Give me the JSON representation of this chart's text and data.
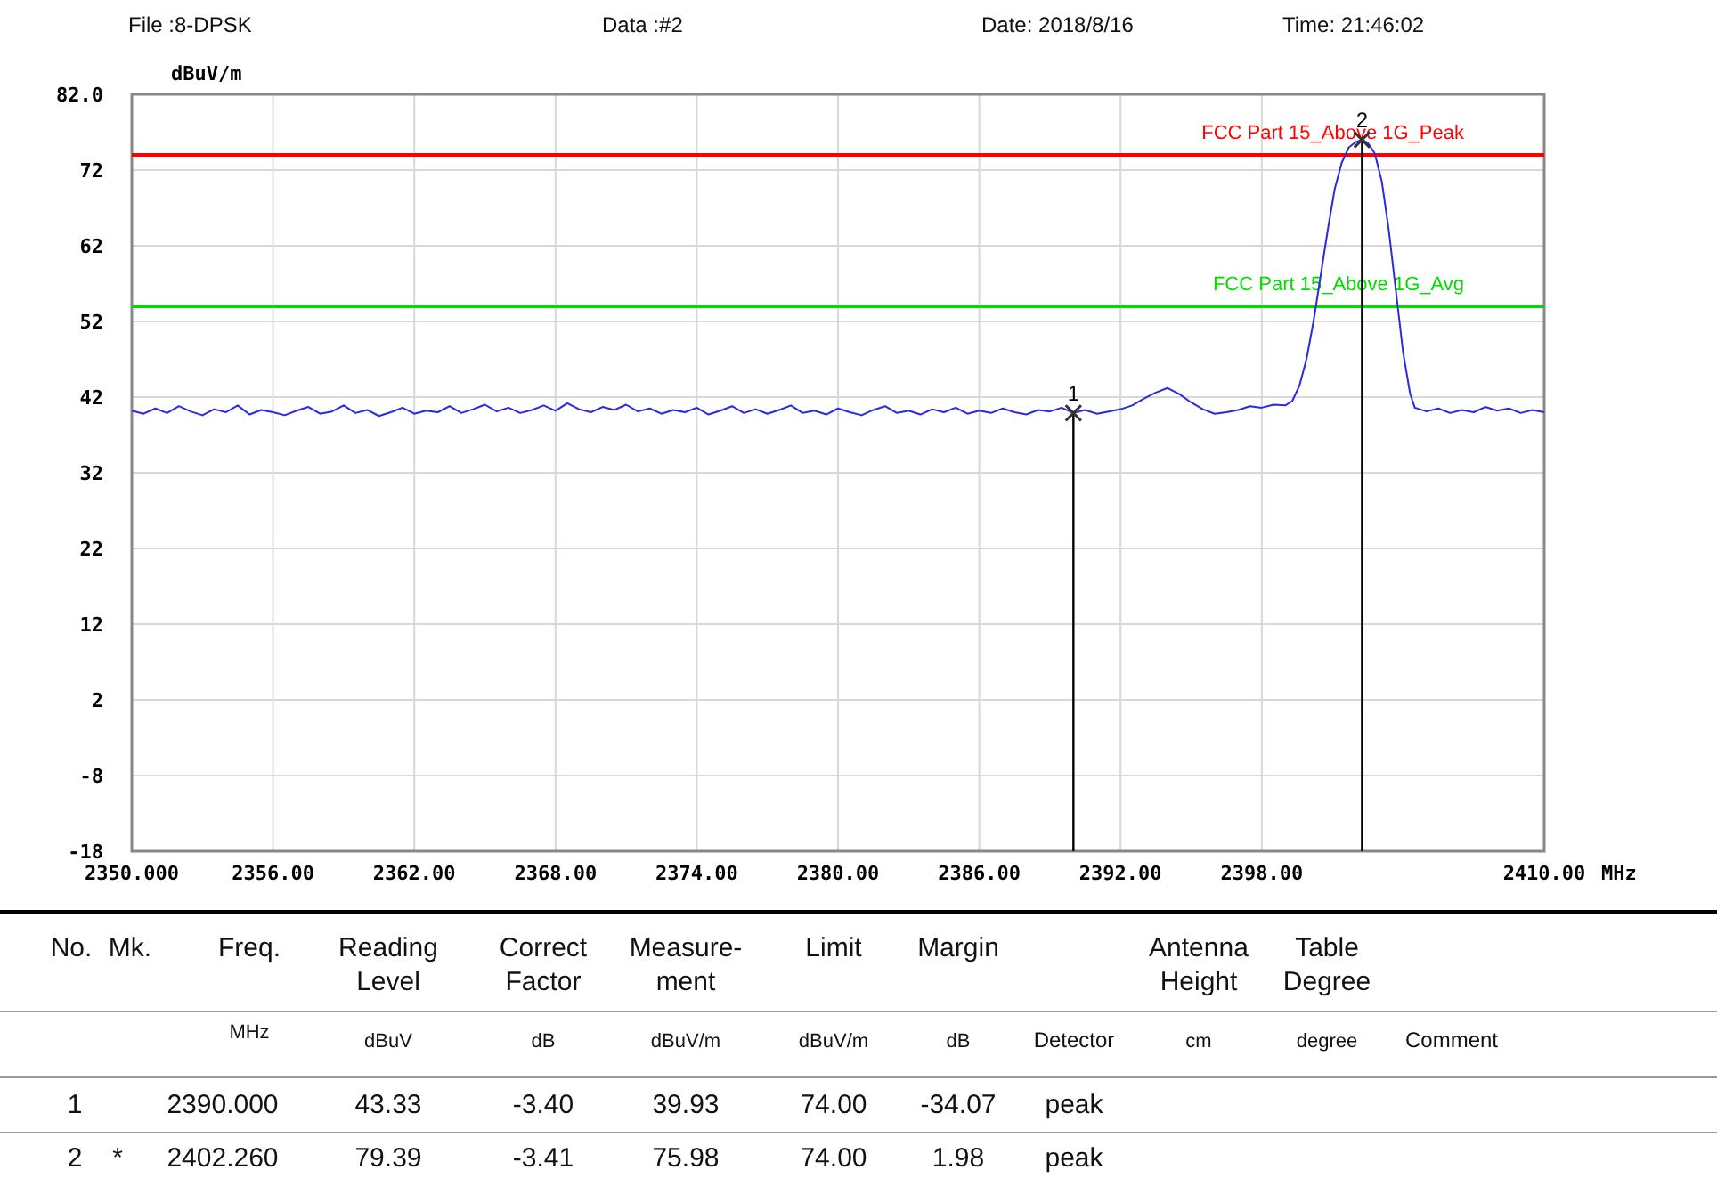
{
  "chart_data": {
    "type": "line",
    "xlabel": "MHz",
    "ylabel": "dBuV/m",
    "xlim": [
      2350,
      2410
    ],
    "xticks": [
      {
        "value": 2350,
        "label": "2350.000"
      },
      {
        "value": 2356,
        "label": "2356.00"
      },
      {
        "value": 2362,
        "label": "2362.00"
      },
      {
        "value": 2368,
        "label": "2368.00"
      },
      {
        "value": 2374,
        "label": "2374.00"
      },
      {
        "value": 2380,
        "label": "2380.00"
      },
      {
        "value": 2386,
        "label": "2386.00"
      },
      {
        "value": 2392,
        "label": "2392.00"
      },
      {
        "value": 2398,
        "label": "2398.00"
      },
      {
        "value": 2410,
        "label": "2410.00"
      }
    ],
    "ylim": [
      -18,
      82
    ],
    "yticks": [
      -18,
      -8,
      2,
      12,
      22,
      32,
      42,
      52,
      62,
      72,
      {
        "value": 82,
        "label": "82.0"
      }
    ],
    "grid": true,
    "series": [
      {
        "color": "#2a2ae0",
        "x": [
          2350,
          2350.5,
          2351,
          2351.5,
          2352,
          2352.5,
          2353,
          2353.5,
          2354,
          2354.5,
          2355,
          2355.5,
          2356,
          2356.5,
          2357,
          2357.5,
          2358,
          2358.5,
          2359,
          2359.5,
          2360,
          2360.5,
          2361,
          2361.5,
          2362,
          2362.5,
          2363,
          2363.5,
          2364,
          2364.5,
          2365,
          2365.5,
          2366,
          2366.5,
          2367,
          2367.5,
          2368,
          2368.5,
          2369,
          2369.5,
          2370,
          2370.5,
          2371,
          2371.5,
          2372,
          2372.5,
          2373,
          2373.5,
          2374,
          2374.5,
          2375,
          2375.5,
          2376,
          2376.5,
          2377,
          2377.5,
          2378,
          2378.5,
          2379,
          2379.5,
          2380,
          2380.5,
          2381,
          2381.5,
          2382,
          2382.5,
          2383,
          2383.5,
          2384,
          2384.5,
          2385,
          2385.5,
          2386,
          2386.5,
          2387,
          2387.5,
          2388,
          2388.5,
          2389,
          2389.5,
          2390,
          2390.5,
          2391,
          2391.5,
          2392,
          2392.5,
          2393,
          2393.5,
          2394,
          2394.5,
          2395,
          2395.5,
          2396,
          2396.5,
          2397,
          2397.5,
          2398,
          2398.5,
          2399,
          2399.3,
          2399.6,
          2399.9,
          2400.2,
          2400.5,
          2400.8,
          2401.1,
          2401.4,
          2401.7,
          2402,
          2402.26,
          2402.5,
          2402.8,
          2403.1,
          2403.4,
          2403.7,
          2404,
          2404.3,
          2404.5,
          2405,
          2405.5,
          2406,
          2406.5,
          2407,
          2407.5,
          2408,
          2408.5,
          2409,
          2409.5,
          2410
        ],
        "values": [
          40.2,
          39.8,
          40.5,
          39.9,
          40.8,
          40.1,
          39.6,
          40.4,
          40.0,
          40.9,
          39.7,
          40.3,
          40.0,
          39.6,
          40.2,
          40.7,
          39.8,
          40.1,
          40.9,
          39.9,
          40.3,
          39.5,
          40.0,
          40.6,
          39.8,
          40.2,
          40.0,
          40.8,
          39.9,
          40.4,
          41.0,
          40.1,
          40.6,
          39.9,
          40.3,
          40.9,
          40.2,
          41.2,
          40.4,
          40.0,
          40.7,
          40.3,
          41.0,
          40.1,
          40.5,
          39.8,
          40.3,
          40.0,
          40.6,
          39.7,
          40.2,
          40.8,
          39.9,
          40.4,
          39.8,
          40.3,
          40.9,
          39.9,
          40.2,
          39.7,
          40.5,
          40.0,
          39.6,
          40.3,
          40.8,
          39.9,
          40.2,
          39.7,
          40.4,
          40.0,
          40.6,
          39.8,
          40.2,
          39.9,
          40.5,
          40.0,
          39.7,
          40.3,
          40.1,
          40.6,
          39.9,
          40.3,
          39.8,
          40.1,
          40.4,
          40.9,
          41.8,
          42.6,
          43.2,
          42.4,
          41.3,
          40.4,
          39.8,
          40.0,
          40.3,
          40.8,
          40.6,
          41.0,
          40.9,
          41.5,
          43.5,
          47,
          52,
          58,
          64,
          69.5,
          73,
          75,
          75.7,
          76.0,
          75.6,
          74.2,
          70.5,
          64,
          56,
          48,
          42.5,
          40.6,
          40.1,
          40.5,
          39.9,
          40.3,
          40.0,
          40.7,
          40.2,
          40.5,
          39.9,
          40.3,
          40.0
        ]
      },
      {
        "type": "scatter",
        "marker": "cross",
        "color": "#333333",
        "x": [
          2390,
          2402.26
        ],
        "values": [
          39.9,
          76.0
        ]
      }
    ],
    "ref_lines": [
      {
        "axis": "y",
        "value": 74,
        "label": "FCC Part 15_Above 1G_Peak",
        "color": "#ff0000"
      },
      {
        "axis": "y",
        "value": 54,
        "label": "FCC Part 15_Above 1G_Avg",
        "color": "#00dd00"
      },
      {
        "axis": "x",
        "value": 2390,
        "color": "#000000"
      },
      {
        "axis": "x",
        "value": 2402.26,
        "color": "#000000"
      }
    ],
    "annotations": [
      "File :8-DPSK",
      "Data :#2",
      "Date: 2018/8/16",
      "Time: 21:46:02",
      "No.",
      "Mk.",
      "Freq.",
      "Reading\nLevel",
      "Correct\nFactor",
      "Measure-\nment",
      "Limit",
      "Margin",
      "Antenna\nHeight",
      "Table\nDegree",
      "MHz",
      "dBuV",
      "dB",
      "dBuV/m",
      "dBuV/m",
      "dB",
      "Detector",
      "cm",
      "degree",
      "Comment",
      "1",
      "2390.000",
      "43.33",
      "-3.40",
      "39.93",
      "74.00",
      "-34.07",
      "peak",
      "2",
      "*",
      "2402.260",
      "79.39",
      "-3.41",
      "75.98",
      "74.00",
      "1.98",
      "peak",
      {
        "text": "1",
        "x": 2390,
        "y": 39.9
      },
      {
        "text": "2",
        "x": 2402.26,
        "y": 76.0
      }
    ]
  }
}
